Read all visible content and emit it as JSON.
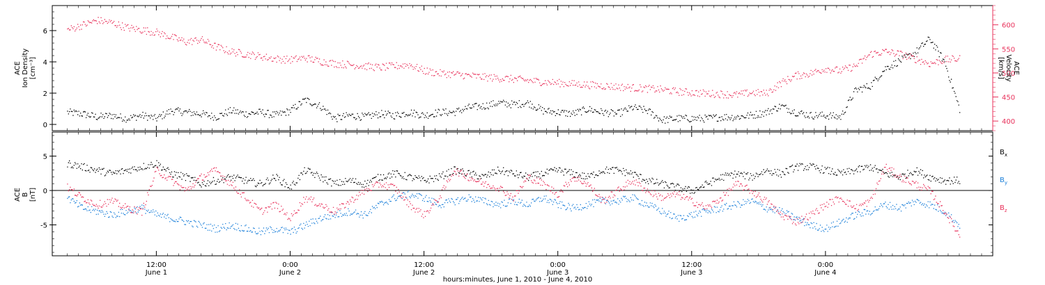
{
  "chart_data": [
    {
      "type": "scatter",
      "panel": "plasma",
      "ylabel_left": [
        "ACE",
        "Ion Density",
        "[cm⁻³]"
      ],
      "ylabel_right": [
        "ACE",
        "Velocity",
        "[km/s]"
      ],
      "ylim_left": [
        -0.4,
        7.6
      ],
      "ylim_right": [
        380,
        640
      ],
      "yticks_left": [
        "0",
        "2",
        "4",
        "6"
      ],
      "yticks_left_values": [
        0,
        2,
        4,
        6
      ],
      "yticks_right": [
        "400",
        "450",
        "500",
        "550",
        "600"
      ],
      "yticks_right_values": [
        400,
        450,
        500,
        550,
        600
      ],
      "series": [
        {
          "color": "#000000",
          "axis": "left",
          "x": [
            0,
            4,
            8,
            12,
            16,
            20,
            24,
            28,
            32,
            36,
            40,
            44,
            48,
            52,
            56,
            60,
            64,
            68,
            72,
            76,
            80,
            84,
            88,
            92,
            96,
            100,
            104,
            108,
            112,
            116,
            120,
            124,
            128,
            132,
            136,
            140,
            144,
            148,
            152,
            156,
            160,
            164,
            168,
            172,
            176,
            180,
            184,
            188,
            192,
            196,
            200,
            204,
            208,
            212,
            216,
            220,
            224,
            228,
            232,
            236,
            240
          ],
          "y": [
            0.8,
            0.7,
            0.5,
            0.6,
            0.4,
            0.6,
            0.4,
            0.9,
            0.8,
            0.7,
            0.5,
            0.9,
            0.7,
            0.8,
            0.6,
            0.9,
            1.6,
            1.2,
            0.4,
            0.6,
            0.5,
            0.7,
            0.6,
            0.8,
            0.6,
            0.8,
            0.8,
            1.1,
            1.2,
            1.4,
            1.3,
            1.4,
            0.9,
            0.8,
            0.7,
            1.0,
            0.8,
            0.7,
            1.1,
            0.9,
            0.3,
            0.4,
            0.4,
            0.4,
            0.5,
            0.5,
            0.6,
            0.8,
            1.2,
            0.8,
            0.6,
            0.6,
            0.5,
            2.2,
            2.5,
            3.6,
            4.1,
            4.6,
            5.5,
            4.0,
            1.0
          ]
        },
        {
          "color": "#e8305a",
          "axis": "right",
          "x": [
            0,
            4,
            8,
            12,
            16,
            20,
            24,
            28,
            32,
            36,
            40,
            44,
            48,
            52,
            56,
            60,
            64,
            68,
            72,
            76,
            80,
            84,
            88,
            92,
            96,
            100,
            104,
            108,
            112,
            116,
            120,
            124,
            128,
            132,
            136,
            140,
            144,
            148,
            152,
            156,
            160,
            164,
            168,
            172,
            176,
            180,
            184,
            188,
            192,
            196,
            200,
            204,
            208,
            212,
            216,
            220,
            224,
            228,
            232,
            236,
            240
          ],
          "y": [
            590,
            600,
            610,
            605,
            595,
            590,
            585,
            575,
            565,
            570,
            555,
            545,
            540,
            535,
            530,
            528,
            532,
            525,
            520,
            518,
            515,
            512,
            515,
            518,
            505,
            500,
            498,
            495,
            492,
            490,
            488,
            485,
            482,
            480,
            478,
            476,
            474,
            472,
            470,
            468,
            466,
            462,
            460,
            458,
            457,
            455,
            460,
            458,
            480,
            495,
            500,
            510,
            505,
            515,
            540,
            545,
            540,
            530,
            520,
            528,
            530
          ]
        }
      ]
    },
    {
      "type": "scatter",
      "panel": "magnetic-field",
      "ylabel_left": [
        "ACE",
        "B",
        "[nT]"
      ],
      "ylim": [
        -9.5,
        8.5
      ],
      "yticks": [
        "-5",
        "0",
        "5"
      ],
      "yticks_values": [
        -5,
        0,
        5
      ],
      "legend": [
        {
          "label": "B",
          "sub": "x",
          "color": "#000000"
        },
        {
          "label": "B",
          "sub": "y",
          "color": "#1a7fd9"
        },
        {
          "label": "B",
          "sub": "z",
          "color": "#e8305a"
        }
      ],
      "series": [
        {
          "label": "Bx",
          "color": "#000000",
          "x": [
            0,
            4,
            8,
            12,
            16,
            20,
            24,
            28,
            32,
            36,
            40,
            44,
            48,
            52,
            56,
            60,
            64,
            68,
            72,
            76,
            80,
            84,
            88,
            92,
            96,
            100,
            104,
            108,
            112,
            116,
            120,
            124,
            128,
            132,
            136,
            140,
            144,
            148,
            152,
            156,
            160,
            164,
            168,
            172,
            176,
            180,
            184,
            188,
            192,
            196,
            200,
            204,
            208,
            212,
            216,
            220,
            224,
            228,
            232,
            236,
            240
          ],
          "y": [
            4,
            3.5,
            3,
            2.5,
            3,
            3.5,
            4,
            2.5,
            2,
            1,
            1.5,
            2,
            1.5,
            1,
            2,
            0.5,
            3,
            2,
            1,
            1.5,
            1,
            2,
            2.5,
            2,
            1.5,
            2,
            3,
            2.5,
            2,
            3,
            2.5,
            2,
            2.5,
            3,
            2.5,
            2,
            3,
            3,
            2.5,
            1.5,
            1,
            0.5,
            0,
            1,
            2,
            2.5,
            2,
            3,
            2.5,
            3.5,
            3.5,
            3,
            2.5,
            3,
            3.5,
            2.5,
            2,
            3,
            2,
            1.5,
            1.5
          ]
        },
        {
          "label": "By",
          "color": "#1a7fd9",
          "x": [
            0,
            4,
            8,
            12,
            16,
            20,
            24,
            28,
            32,
            36,
            40,
            44,
            48,
            52,
            56,
            60,
            64,
            68,
            72,
            76,
            80,
            84,
            88,
            92,
            96,
            100,
            104,
            108,
            112,
            116,
            120,
            124,
            128,
            132,
            136,
            140,
            144,
            148,
            152,
            156,
            160,
            164,
            168,
            172,
            176,
            180,
            184,
            188,
            192,
            196,
            200,
            204,
            208,
            212,
            216,
            220,
            224,
            228,
            232,
            236,
            240
          ],
          "y": [
            -1,
            -2.5,
            -3,
            -3.5,
            -3,
            -2.5,
            -3.5,
            -4,
            -4.5,
            -5,
            -5.5,
            -5,
            -5.5,
            -6,
            -5.5,
            -6,
            -5,
            -4,
            -3.5,
            -3,
            -3.5,
            -2,
            -1,
            -0.5,
            -1,
            -2,
            -1.5,
            -1,
            -1.5,
            -2,
            -1.5,
            -2,
            -1,
            -2,
            -2.5,
            -2,
            -1.5,
            -1.5,
            -1,
            -2,
            -3,
            -4,
            -3.5,
            -3,
            -2.5,
            -2,
            -1.5,
            -2.5,
            -3,
            -4,
            -5,
            -5.5,
            -4.5,
            -3.5,
            -3,
            -2,
            -2.5,
            -1.5,
            -2,
            -3,
            -5
          ]
        },
        {
          "label": "Bz",
          "color": "#e8305a",
          "x": [
            0,
            4,
            8,
            12,
            16,
            20,
            24,
            28,
            32,
            36,
            40,
            44,
            48,
            52,
            56,
            60,
            64,
            68,
            72,
            76,
            80,
            84,
            88,
            92,
            96,
            100,
            104,
            108,
            112,
            116,
            120,
            124,
            128,
            132,
            136,
            140,
            144,
            148,
            152,
            156,
            160,
            164,
            168,
            172,
            176,
            180,
            184,
            188,
            192,
            196,
            200,
            204,
            208,
            212,
            216,
            220,
            224,
            228,
            232,
            236,
            240
          ],
          "y": [
            0.5,
            -1,
            -2,
            -1.5,
            -2.5,
            -3,
            3,
            1.5,
            0,
            2,
            3,
            1,
            -1,
            -3,
            -2,
            -4,
            -1,
            -2,
            -3,
            -1.5,
            0,
            1,
            0.5,
            -2,
            -3.5,
            -1,
            3,
            2,
            1,
            0.5,
            -1,
            2,
            1,
            -0.5,
            2,
            1,
            -1.5,
            0,
            1.5,
            0,
            -1,
            -0.5,
            -1.5,
            -2.5,
            -1,
            1,
            0,
            -1.5,
            -3.5,
            -4.5,
            -3.5,
            -2,
            -1,
            -2.5,
            -1.5,
            3.5,
            2,
            1,
            0,
            -3,
            -6.5
          ]
        }
      ]
    }
  ],
  "xaxis": {
    "range_hours": [
      -4,
      249
    ],
    "ticks": [
      {
        "hours": 24,
        "line1": "12:00",
        "line2": "June 1"
      },
      {
        "hours": 60,
        "line1": "0:00",
        "line2": "June 2"
      },
      {
        "hours": 96,
        "line1": "12:00",
        "line2": "June 2"
      },
      {
        "hours": 132,
        "line1": "0:00",
        "line2": "June 3"
      },
      {
        "hours": 168,
        "line1": "12:00",
        "line2": "June 3"
      },
      {
        "hours": 204,
        "line1": "0:00",
        "line2": "June 4"
      }
    ],
    "label": "hours:minutes,  June  1, 2010 - June  4, 2010"
  }
}
